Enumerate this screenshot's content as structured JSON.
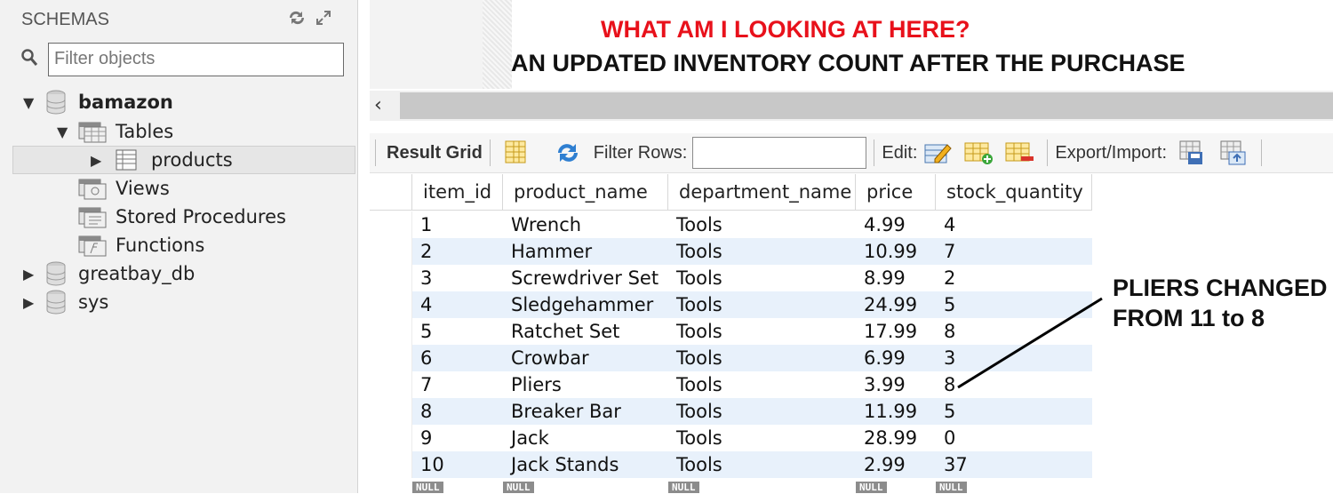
{
  "sidebar": {
    "title": "SCHEMAS",
    "filter_placeholder": "Filter objects",
    "tree": {
      "db_bamazon": "bamazon",
      "folder_tables": "Tables",
      "table_products": "products",
      "folder_views": "Views",
      "folder_procedures": "Stored Procedures",
      "folder_functions": "Functions",
      "db_greatbay": "greatbay_db",
      "db_sys": "sys"
    }
  },
  "annotation": {
    "title": "WHAT AM I LOOKING AT HERE?",
    "subtitle": "AN UPDATED INVENTORY COUNT AFTER THE PURCHASE",
    "callout_line1": "PLIERS CHANGED",
    "callout_line2": "FROM 11 to 8",
    "title_color": "#e8111b"
  },
  "toolbar": {
    "result_grid": "Result Grid",
    "filter_rows": "Filter Rows:",
    "edit": "Edit:",
    "export_import": "Export/Import:"
  },
  "grid": {
    "columns": [
      "item_id",
      "product_name",
      "department_name",
      "price",
      "stock_quantity"
    ],
    "rows": [
      [
        "1",
        "Wrench",
        "Tools",
        "4.99",
        "4"
      ],
      [
        "2",
        "Hammer",
        "Tools",
        "10.99",
        "7"
      ],
      [
        "3",
        "Screwdriver Set",
        "Tools",
        "8.99",
        "2"
      ],
      [
        "4",
        "Sledgehammer",
        "Tools",
        "24.99",
        "5"
      ],
      [
        "5",
        "Ratchet Set",
        "Tools",
        "17.99",
        "8"
      ],
      [
        "6",
        "Crowbar",
        "Tools",
        "6.99",
        "3"
      ],
      [
        "7",
        "Pliers",
        "Tools",
        "3.99",
        "8"
      ],
      [
        "8",
        "Breaker Bar",
        "Tools",
        "11.99",
        "5"
      ],
      [
        "9",
        "Jack",
        "Tools",
        "28.99",
        "0"
      ],
      [
        "10",
        "Jack Stands",
        "Tools",
        "2.99",
        "37"
      ]
    ],
    "null_label": "NULL",
    "alt_row_color": "#e8f1fb"
  }
}
